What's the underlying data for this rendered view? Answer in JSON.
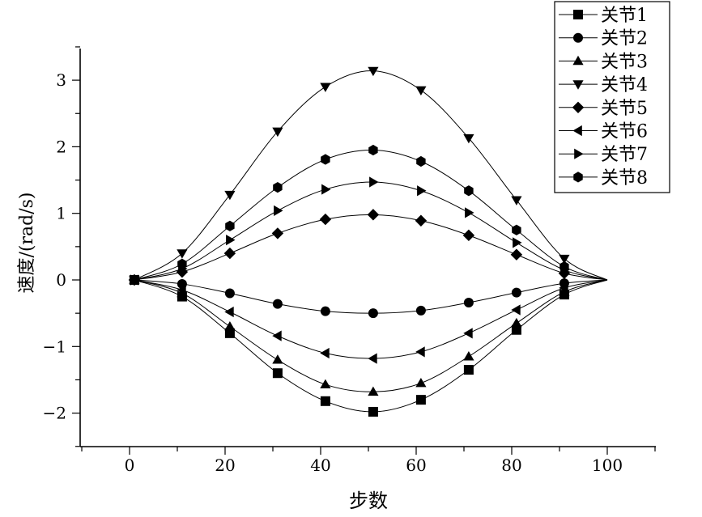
{
  "chart_data": {
    "type": "line",
    "title": "",
    "xlabel": "步数",
    "ylabel": "速度/(rad/s)",
    "xlim": [
      -10,
      110
    ],
    "ylim": [
      -2.5,
      3.5
    ],
    "xticks": [
      0,
      20,
      40,
      60,
      80,
      100
    ],
    "yticks": [
      -2,
      -1,
      0,
      1,
      2,
      3
    ],
    "grid": false,
    "legend": "top-right",
    "x": [
      1,
      11,
      21,
      31,
      41,
      51,
      61,
      71,
      81,
      91,
      100
    ],
    "series": [
      {
        "name": "关节1",
        "marker": "square",
        "values": [
          0,
          -0.25,
          -0.8,
          -1.4,
          -1.82,
          -1.98,
          -1.8,
          -1.35,
          -0.75,
          -0.22,
          0
        ]
      },
      {
        "name": "关节2",
        "marker": "circle",
        "values": [
          0,
          -0.06,
          -0.2,
          -0.36,
          -0.47,
          -0.5,
          -0.46,
          -0.34,
          -0.19,
          -0.05,
          0
        ]
      },
      {
        "name": "关节3",
        "marker": "triangle-up",
        "values": [
          0,
          -0.2,
          -0.7,
          -1.2,
          -1.57,
          -1.68,
          -1.55,
          -1.15,
          -0.65,
          -0.18,
          0
        ]
      },
      {
        "name": "关节4",
        "marker": "triangle-down",
        "values": [
          0,
          0.4,
          1.28,
          2.23,
          2.9,
          3.14,
          2.85,
          2.13,
          1.2,
          0.32,
          0
        ]
      },
      {
        "name": "关节5",
        "marker": "diamond",
        "values": [
          0,
          0.12,
          0.4,
          0.7,
          0.91,
          0.98,
          0.89,
          0.67,
          0.38,
          0.1,
          0
        ]
      },
      {
        "name": "关节6",
        "marker": "triangle-left",
        "values": [
          0,
          -0.15,
          -0.48,
          -0.84,
          -1.1,
          -1.18,
          -1.08,
          -0.8,
          -0.45,
          -0.12,
          0
        ]
      },
      {
        "name": "关节7",
        "marker": "triangle-right",
        "values": [
          0,
          0.17,
          0.6,
          1.04,
          1.36,
          1.47,
          1.34,
          1.01,
          0.56,
          0.15,
          0
        ]
      },
      {
        "name": "关节8",
        "marker": "hexagon",
        "values": [
          0,
          0.24,
          0.81,
          1.39,
          1.81,
          1.95,
          1.78,
          1.34,
          0.75,
          0.2,
          0
        ]
      }
    ]
  }
}
